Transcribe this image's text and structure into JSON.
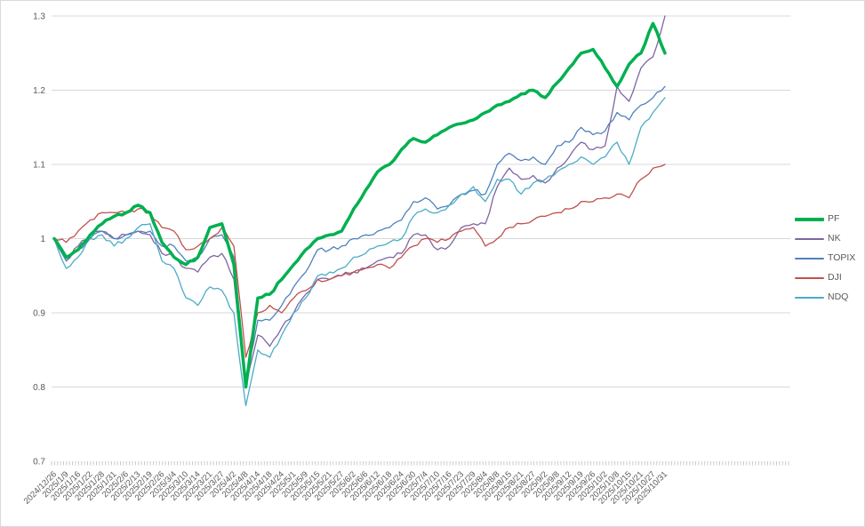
{
  "chart_data": {
    "type": "line",
    "title": "",
    "xlabel": "",
    "ylabel": "",
    "ylim": [
      0.7,
      1.3
    ],
    "grid": true,
    "legend_position": "right",
    "y_ticks": [
      "0.7",
      "0.8",
      "0.9",
      "1",
      "1.1",
      "1.2",
      "1.3"
    ],
    "x_labels": [
      "2024/12/26",
      "2025/1/9",
      "2025/1/16",
      "2025/1/22",
      "2025/1/28",
      "2025/1/31",
      "2025/2/6",
      "2025/2/13",
      "2025/2/19",
      "2025/2/26",
      "2025/3/4",
      "2025/3/10",
      "2025/3/14",
      "2025/3/21",
      "2025/3/27",
      "2025/4/2",
      "2025/4/8",
      "2025/4/14",
      "2025/4/18",
      "2025/4/24",
      "2025/5/1",
      "2025/5/9",
      "2025/5/15",
      "2025/5/21",
      "2025/5/27",
      "2025/6/2",
      "2025/6/6",
      "2025/6/12",
      "2025/6/18",
      "2025/6/24",
      "2025/6/30",
      "2025/7/4",
      "2025/7/10",
      "2025/7/16",
      "2025/7/23",
      "2025/7/29",
      "2025/8/4",
      "2025/8/8",
      "2025/8/15",
      "2025/8/21",
      "2025/8/27",
      "2025/9/2",
      "2025/9/8",
      "2025/9/12",
      "2025/9/19",
      "2025/9/26",
      "2025/10/2",
      "2025/10/8",
      "2025/10/15",
      "2025/10/21",
      "2025/10/27",
      "2025/10/31"
    ],
    "series": [
      {
        "name": "PF",
        "color": "#00B050",
        "width": 3.5,
        "values": [
          1.0,
          0.975,
          0.985,
          1.005,
          1.02,
          1.03,
          1.035,
          1.045,
          1.035,
          0.995,
          0.975,
          0.965,
          0.975,
          1.015,
          1.02,
          0.965,
          0.8,
          0.92,
          0.925,
          0.945,
          0.965,
          0.985,
          1.0,
          1.005,
          1.01,
          1.04,
          1.065,
          1.09,
          1.1,
          1.12,
          1.135,
          1.13,
          1.14,
          1.15,
          1.155,
          1.16,
          1.17,
          1.18,
          1.185,
          1.195,
          1.2,
          1.19,
          1.21,
          1.23,
          1.25,
          1.255,
          1.23,
          1.205,
          1.235,
          1.25,
          1.29,
          1.25
        ]
      },
      {
        "name": "NK",
        "color": "#8064A2",
        "width": 1.3,
        "values": [
          1.0,
          0.97,
          0.99,
          1.005,
          1.01,
          1.0,
          1.005,
          1.01,
          1.005,
          0.98,
          0.975,
          0.96,
          0.955,
          0.975,
          0.98,
          0.945,
          0.8,
          0.87,
          0.855,
          0.88,
          0.9,
          0.925,
          0.945,
          0.945,
          0.95,
          0.955,
          0.96,
          0.97,
          0.975,
          0.98,
          1.005,
          1.005,
          0.985,
          0.99,
          1.015,
          1.02,
          1.02,
          1.07,
          1.095,
          1.08,
          1.085,
          1.075,
          1.095,
          1.11,
          1.13,
          1.12,
          1.125,
          1.205,
          1.185,
          1.23,
          1.245,
          1.3
        ]
      },
      {
        "name": "TOPIX",
        "color": "#4F81BD",
        "width": 1.3,
        "values": [
          1.0,
          0.97,
          0.985,
          1.0,
          1.01,
          1.0,
          1.005,
          1.01,
          1.01,
          0.99,
          0.99,
          0.97,
          0.975,
          1.0,
          1.005,
          0.975,
          0.81,
          0.89,
          0.89,
          0.91,
          0.935,
          0.955,
          0.985,
          0.985,
          0.99,
          1.0,
          1.005,
          1.01,
          1.015,
          1.025,
          1.05,
          1.055,
          1.04,
          1.045,
          1.06,
          1.065,
          1.06,
          1.1,
          1.115,
          1.105,
          1.11,
          1.1,
          1.125,
          1.13,
          1.15,
          1.14,
          1.145,
          1.17,
          1.16,
          1.18,
          1.19,
          1.205
        ]
      },
      {
        "name": "DJI",
        "color": "#C0504D",
        "width": 1.3,
        "values": [
          1.0,
          0.995,
          1.01,
          1.025,
          1.035,
          1.035,
          1.035,
          1.04,
          1.035,
          1.015,
          1.01,
          0.985,
          0.99,
          1.0,
          1.015,
          0.99,
          0.84,
          0.9,
          0.91,
          0.9,
          0.92,
          0.93,
          0.945,
          0.945,
          0.95,
          0.955,
          0.96,
          0.965,
          0.96,
          0.975,
          0.99,
          1.0,
          0.995,
          1.0,
          1.01,
          1.015,
          0.99,
          1.0,
          1.015,
          1.02,
          1.025,
          1.03,
          1.035,
          1.04,
          1.05,
          1.05,
          1.055,
          1.06,
          1.055,
          1.08,
          1.095,
          1.1
        ]
      },
      {
        "name": "NDQ",
        "color": "#4BACC6",
        "width": 1.3,
        "values": [
          1.0,
          0.96,
          0.975,
          1.0,
          1.005,
          0.99,
          1.0,
          1.015,
          1.02,
          0.97,
          0.96,
          0.92,
          0.91,
          0.935,
          0.93,
          0.9,
          0.775,
          0.85,
          0.84,
          0.87,
          0.9,
          0.92,
          0.95,
          0.955,
          0.96,
          0.975,
          0.98,
          0.99,
          0.995,
          1.0,
          1.03,
          1.04,
          1.035,
          1.045,
          1.06,
          1.07,
          1.05,
          1.08,
          1.08,
          1.06,
          1.075,
          1.08,
          1.09,
          1.1,
          1.11,
          1.1,
          1.11,
          1.13,
          1.1,
          1.15,
          1.17,
          1.19
        ]
      }
    ]
  },
  "colors": {
    "background": "#FFFFFF",
    "border": "#D9D9D9",
    "gridline": "#D9D9D9",
    "tick": "#C6C6C6",
    "axis_text": "#595959"
  }
}
